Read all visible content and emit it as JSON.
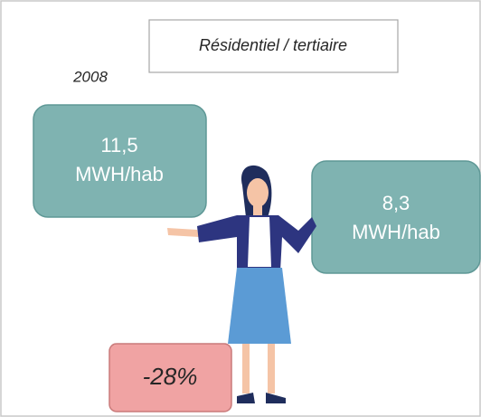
{
  "header": {
    "title": "Résidentiel / tertiaire",
    "year": "2008"
  },
  "boxes": [
    {
      "value": "11,5",
      "unit": "MWH/hab"
    },
    {
      "value": "8,3",
      "unit": "MWH/hab"
    }
  ],
  "change": "-28%"
}
